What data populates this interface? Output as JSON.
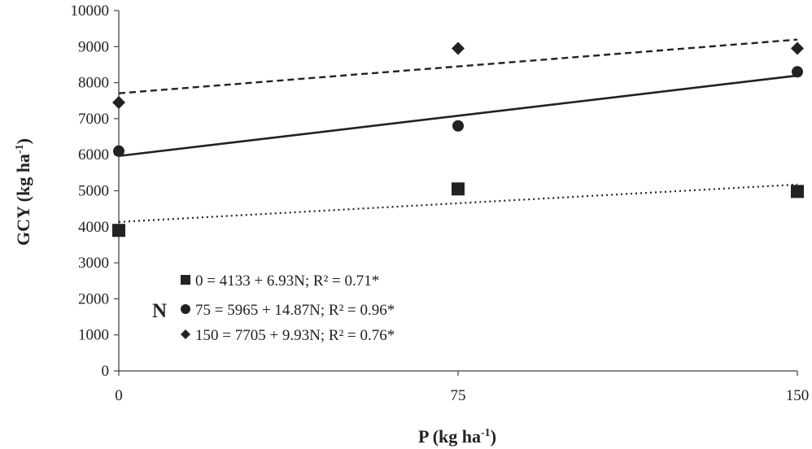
{
  "chart_data": {
    "type": "scatter",
    "xlabel_main": "P (kg ha",
    "xlabel_sup": "-1",
    "xlabel_close": ")",
    "ylabel_main": "GCY (kg ha",
    "ylabel_sup": "-1",
    "ylabel_close": ")",
    "x_ticks": [
      0,
      75,
      150
    ],
    "y_ticks": [
      0,
      1000,
      2000,
      3000,
      4000,
      5000,
      6000,
      7000,
      8000,
      9000,
      10000
    ],
    "xlim": [
      0,
      150
    ],
    "ylim": [
      0,
      10000
    ],
    "grid": false,
    "legend_group_label": "N",
    "legend_position": "bottom-left",
    "series": [
      {
        "name": "0",
        "legend_label": "0 = 4133 + 6.93N; R² = 0.71*",
        "marker": "square",
        "line_style": "dotted",
        "x": [
          0,
          75,
          150
        ],
        "y": [
          3900,
          5050,
          4980
        ],
        "intercept": 4133,
        "slope": 6.93,
        "color": "#222222"
      },
      {
        "name": "75",
        "legend_label": "75 = 5965 + 14.87N; R² = 0.96*",
        "marker": "circle",
        "line_style": "solid",
        "x": [
          0,
          75,
          150
        ],
        "y": [
          6100,
          6800,
          8300
        ],
        "intercept": 5965,
        "slope": 14.87,
        "color": "#222222"
      },
      {
        "name": "150",
        "legend_label": "150 = 7705 + 9.93N; R² = 0.76*",
        "marker": "diamond",
        "line_style": "dashed",
        "x": [
          0,
          75,
          150
        ],
        "y": [
          7450,
          8950,
          8950
        ],
        "intercept": 7705,
        "slope": 9.93,
        "color": "#222222"
      }
    ]
  }
}
